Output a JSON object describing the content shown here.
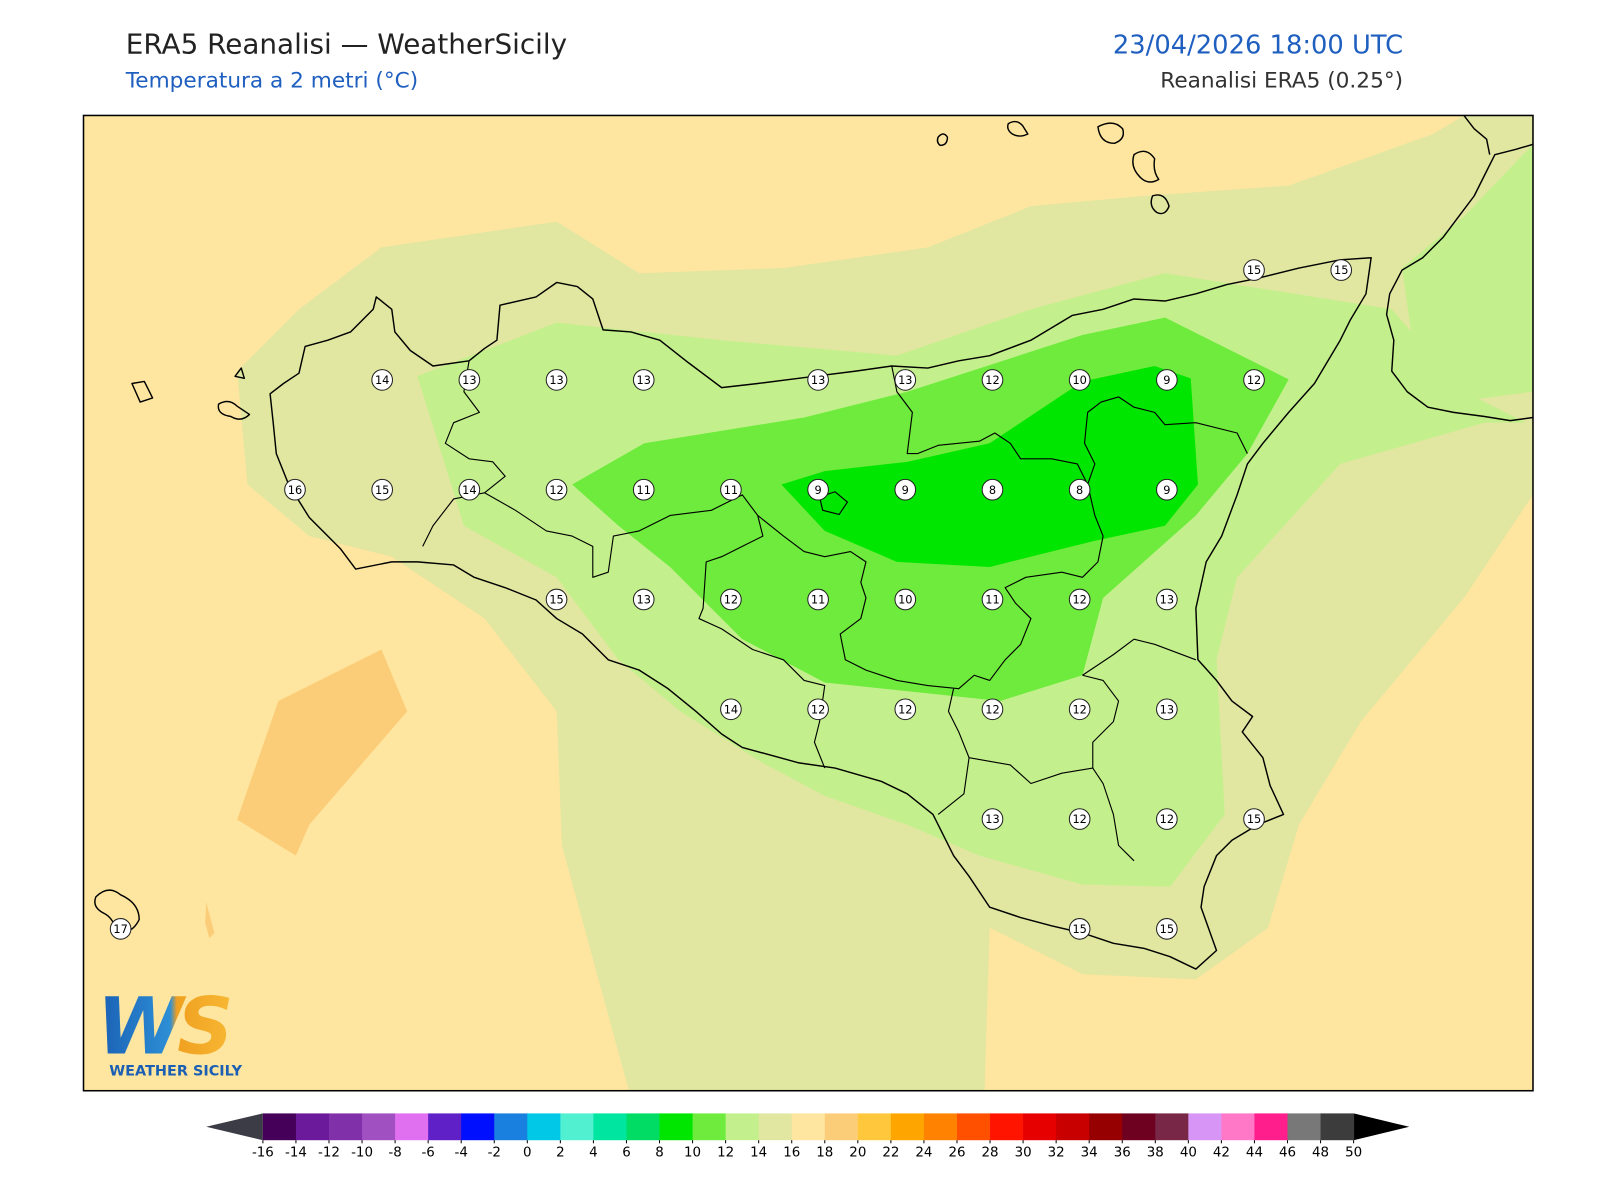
{
  "header": {
    "title": "ERA5 Reanalisi — WeatherSicily",
    "subtitle": "Temperatura a 2 metri (°C)",
    "datetime": "23/04/2026 18:00 UTC",
    "source": "Reanalisi ERA5 (0.25°)"
  },
  "stations": {
    "grid": [
      [
        null,
        null,
        null,
        null,
        null,
        null,
        null,
        null,
        null,
        null,
        null,
        null,
        null,
        15,
        15
      ],
      [
        null,
        null,
        null,
        14,
        13,
        13,
        13,
        null,
        13,
        13,
        12,
        10,
        9,
        12,
        null
      ],
      [
        null,
        null,
        16,
        15,
        14,
        12,
        11,
        11,
        9,
        9,
        8,
        8,
        9,
        null,
        null
      ],
      [
        null,
        null,
        null,
        null,
        null,
        15,
        13,
        12,
        11,
        10,
        11,
        12,
        13,
        null,
        null
      ],
      [
        null,
        null,
        null,
        null,
        null,
        null,
        null,
        14,
        12,
        12,
        12,
        12,
        13,
        null,
        null
      ],
      [
        null,
        null,
        null,
        null,
        null,
        null,
        null,
        null,
        null,
        null,
        13,
        12,
        12,
        15,
        null
      ],
      [
        17,
        null,
        null,
        null,
        null,
        null,
        null,
        null,
        null,
        null,
        null,
        15,
        15,
        null,
        null
      ]
    ]
  },
  "colorbar": {
    "ticks": [
      -16,
      -14,
      -12,
      -10,
      -8,
      -6,
      -4,
      -2,
      0,
      2,
      4,
      6,
      8,
      10,
      12,
      14,
      16,
      18,
      20,
      22,
      24,
      26,
      28,
      30,
      32,
      34,
      36,
      38,
      40,
      42,
      44,
      46,
      48,
      50
    ],
    "colors": [
      "#45005a",
      "#6a1a9a",
      "#8030a8",
      "#a050c0",
      "#e070f0",
      "#6020c8",
      "#0010ff",
      "#1a80e0",
      "#00c8e6",
      "#50f0d0",
      "#00e6a0",
      "#00dc64",
      "#00e600",
      "#6eeb3c",
      "#c3f08c",
      "#e1e6a0",
      "#ffe6a0",
      "#fccd78",
      "#ffc83c",
      "#ffa500",
      "#ff8200",
      "#ff5000",
      "#ff1400",
      "#e60000",
      "#c80000",
      "#960000",
      "#6e0020",
      "#782846",
      "#d796f5",
      "#ff78c8",
      "#ff1e8c",
      "#787878",
      "#3c3c3c"
    ],
    "under_color": "#3c3c46",
    "over_color": "#000000"
  },
  "logo": {
    "mark": "WS",
    "text": "WEATHER SICILY"
  }
}
